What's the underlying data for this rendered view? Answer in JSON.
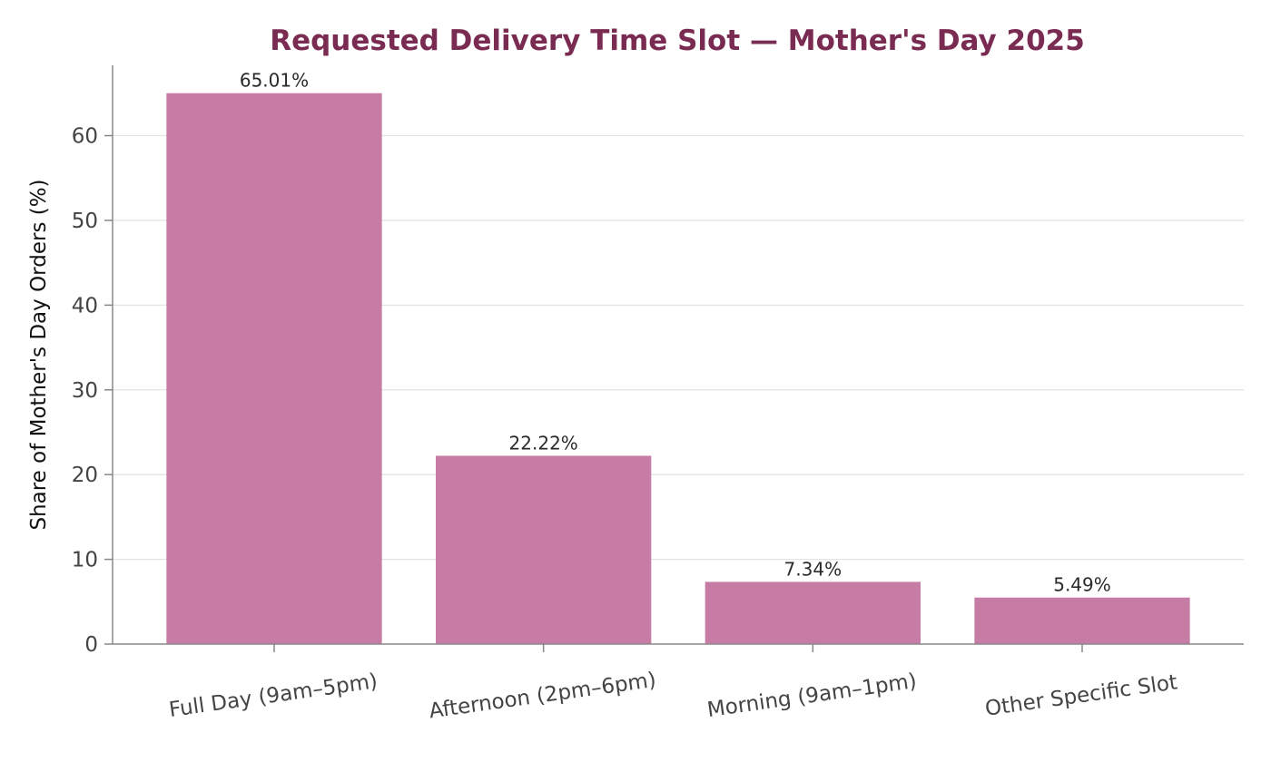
{
  "chart_data": {
    "type": "bar",
    "title": "Requested Delivery Time Slot — Mother's Day 2025",
    "xlabel": "",
    "ylabel": "Share of Mother's Day Orders (%)",
    "categories": [
      "Full Day (9am–5pm)",
      "Afternoon (2pm–6pm)",
      "Morning (9am–1pm)",
      "Other Specific Slot"
    ],
    "values": [
      65.01,
      22.22,
      7.34,
      5.49
    ],
    "data_labels": [
      "65.01%",
      "22.22%",
      "7.34%",
      "5.49%"
    ],
    "ylim": [
      0,
      68.3
    ],
    "yticks": [
      0,
      10,
      20,
      30,
      40,
      50,
      60
    ],
    "grid": "horizontal",
    "legend": "none",
    "colors": {
      "bar": "#c67ca5",
      "title": "#7a2b52",
      "grid": "#e3e3e3",
      "axis": "#888888"
    }
  }
}
